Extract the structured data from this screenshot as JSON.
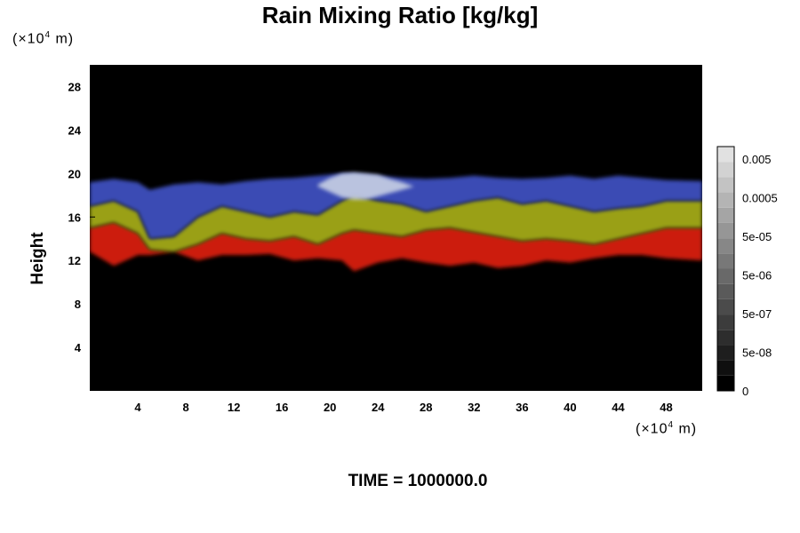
{
  "chart_data": {
    "type": "heatmap",
    "title": "Rain Mixing Ratio [kg/kg]",
    "ylabel": "Height",
    "xlabel": "",
    "x_unit_prefix": "(×10",
    "x_unit_exp": "4",
    "x_unit_suffix": " m)",
    "y_unit_prefix": "(×10",
    "y_unit_exp": "4",
    "y_unit_suffix": " m)",
    "xlim": [
      0,
      51
    ],
    "ylim": [
      0,
      30
    ],
    "x_ticks": [
      "4",
      "8",
      "12",
      "16",
      "20",
      "24",
      "28",
      "32",
      "36",
      "40",
      "44",
      "48"
    ],
    "y_ticks": [
      "4",
      "8",
      "12",
      "16",
      "20",
      "24",
      "28"
    ],
    "colorbar_labels": [
      "0.005",
      "0.0005",
      "5e-05",
      "5e-06",
      "5e-07",
      "5e-08",
      "0"
    ],
    "colorbar_levels": 16,
    "background_color": "#000000",
    "band_colors": {
      "low": "#cc1a10",
      "mid": "#9aa018",
      "high": "#3a4cb4",
      "peak": "#c8d0e4"
    },
    "layers": [
      {
        "band": "low",
        "x": [
          0,
          2,
          4,
          5,
          7,
          9,
          11,
          13,
          15,
          17,
          19,
          21,
          22,
          24,
          26,
          28,
          30,
          32,
          34,
          36,
          38,
          40,
          42,
          44,
          46,
          48,
          51
        ],
        "top": [
          15.0,
          15.5,
          14.5,
          13.0,
          12.8,
          13.5,
          14.5,
          14.0,
          13.8,
          14.2,
          13.5,
          14.5,
          14.8,
          14.5,
          14.2,
          14.8,
          15.0,
          14.6,
          14.2,
          13.8,
          14.0,
          13.8,
          13.5,
          14.0,
          14.5,
          15.0,
          15.0
        ],
        "bottom": [
          12.8,
          11.5,
          12.5,
          12.5,
          12.8,
          12.0,
          12.5,
          12.5,
          12.6,
          12.0,
          12.2,
          12.0,
          11.0,
          11.8,
          12.2,
          11.8,
          11.5,
          11.8,
          11.3,
          11.5,
          12.0,
          11.8,
          12.2,
          12.5,
          12.5,
          12.2,
          12.0
        ]
      },
      {
        "band": "mid",
        "x": [
          0,
          2,
          4,
          5,
          7,
          9,
          11,
          13,
          15,
          17,
          19,
          21,
          22,
          24,
          26,
          28,
          30,
          32,
          34,
          36,
          38,
          40,
          42,
          44,
          46,
          48,
          51
        ],
        "top": [
          17.0,
          17.5,
          16.5,
          14.0,
          14.2,
          16.0,
          17.0,
          16.5,
          16.0,
          16.5,
          16.2,
          17.5,
          18.0,
          17.5,
          17.2,
          16.5,
          17.0,
          17.5,
          17.8,
          17.2,
          17.5,
          17.0,
          16.5,
          16.8,
          17.0,
          17.5,
          17.5
        ],
        "bottom": [
          15.0,
          15.5,
          14.5,
          13.0,
          12.8,
          13.5,
          14.5,
          14.0,
          13.8,
          14.2,
          13.5,
          14.5,
          14.8,
          14.5,
          14.2,
          14.8,
          15.0,
          14.6,
          14.2,
          13.8,
          14.0,
          13.8,
          13.5,
          14.0,
          14.5,
          15.0,
          15.0
        ]
      },
      {
        "band": "high",
        "x": [
          0,
          2,
          4,
          5,
          7,
          9,
          11,
          13,
          15,
          17,
          19,
          21,
          22,
          24,
          26,
          28,
          30,
          32,
          34,
          36,
          38,
          40,
          42,
          44,
          46,
          48,
          51
        ],
        "top": [
          19.2,
          19.5,
          19.2,
          18.5,
          19.0,
          19.2,
          19.0,
          19.3,
          19.5,
          19.6,
          19.8,
          20.0,
          20.0,
          19.8,
          19.6,
          19.5,
          19.6,
          19.8,
          19.6,
          19.5,
          19.6,
          19.8,
          19.5,
          19.8,
          19.6,
          19.4,
          19.3
        ],
        "bottom": [
          17.0,
          17.5,
          16.5,
          14.0,
          14.2,
          16.0,
          17.0,
          16.5,
          16.0,
          16.5,
          16.2,
          17.5,
          18.0,
          17.5,
          17.2,
          16.5,
          17.0,
          17.5,
          17.8,
          17.2,
          17.5,
          17.0,
          16.5,
          16.8,
          17.0,
          17.5,
          17.5
        ]
      }
    ],
    "peak_region": {
      "x": [
        19,
        20,
        21,
        22,
        23,
        24,
        25,
        26,
        27
      ],
      "top": [
        19.0,
        19.6,
        20.0,
        20.1,
        20.0,
        19.9,
        19.5,
        19.2,
        18.8
      ],
      "bottom": [
        18.8,
        18.3,
        17.8,
        17.6,
        17.6,
        17.9,
        18.2,
        18.5,
        18.8
      ]
    }
  },
  "footer": {
    "time_text": "TIME = 1000000.0"
  }
}
